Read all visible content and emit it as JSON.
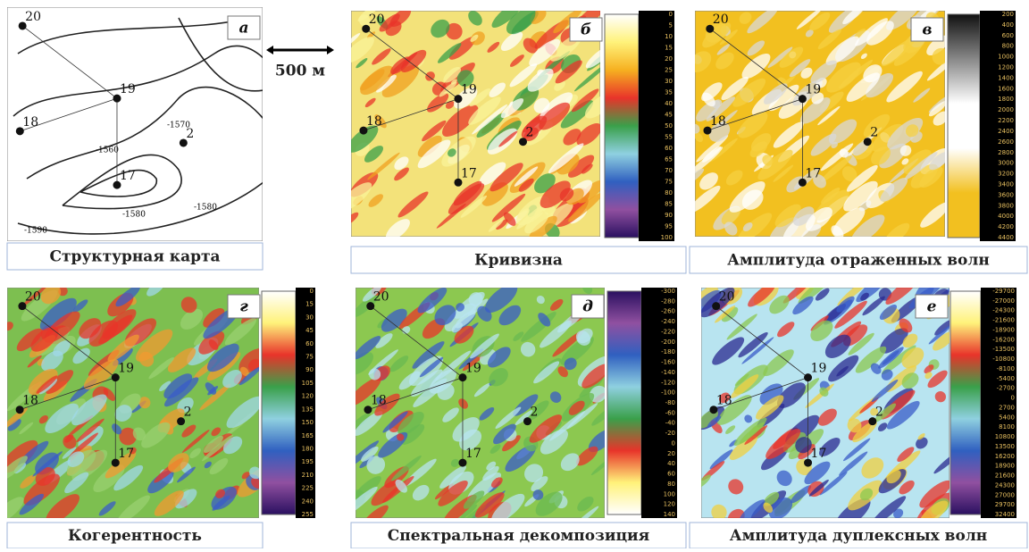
{
  "scale_bar": "500 м",
  "panels": [
    {
      "letter": "а",
      "caption": "Структурная карта",
      "wells": [
        "20",
        "19",
        "18",
        "17",
        "2"
      ],
      "contour_labels": [
        "-1590",
        "-1580",
        "-1560",
        "-1570",
        "-1580"
      ]
    },
    {
      "letter": "б",
      "caption": "Кривизна",
      "wells": [
        "20",
        "19",
        "18",
        "17",
        "2"
      ],
      "colorbar_ticks": [
        0,
        5,
        10,
        15,
        20,
        25,
        30,
        35,
        40,
        45,
        50,
        55,
        60,
        65,
        70,
        75,
        80,
        85,
        90,
        95,
        100
      ]
    },
    {
      "letter": "в",
      "caption": "Амплитуда отраженных волн",
      "wells": [
        "20",
        "19",
        "18",
        "17",
        "2"
      ],
      "colorbar_ticks": [
        200,
        400,
        600,
        800,
        1000,
        1200,
        1400,
        1600,
        1800,
        2000,
        2200,
        2400,
        2600,
        2800,
        3000,
        3200,
        3400,
        3600,
        3800,
        4000,
        4200,
        4400
      ]
    },
    {
      "letter": "г",
      "caption": "Когерентность",
      "wells": [
        "20",
        "19",
        "18",
        "17",
        "2"
      ],
      "colorbar_ticks": [
        0,
        15,
        30,
        45,
        60,
        75,
        90,
        105,
        120,
        135,
        150,
        165,
        180,
        195,
        210,
        225,
        240,
        255
      ]
    },
    {
      "letter": "д",
      "caption": "Спектральная декомпозиция",
      "wells": [
        "20",
        "19",
        "18",
        "17",
        "2"
      ],
      "colorbar_ticks": [
        -300,
        -280,
        -260,
        -240,
        -220,
        -200,
        -180,
        -160,
        -140,
        -120,
        -100,
        -80,
        -60,
        -40,
        -20,
        0,
        20,
        40,
        60,
        80,
        100,
        120,
        140
      ]
    },
    {
      "letter": "е",
      "caption": "Амплитуда дуплексных волн",
      "wells": [
        "20",
        "19",
        "18",
        "17",
        "2"
      ],
      "colorbar_ticks": [
        -29700,
        -27000,
        -24300,
        -21600,
        -18900,
        -16200,
        -13500,
        -10800,
        -8100,
        -5400,
        -2700,
        0,
        2700,
        5400,
        8100,
        10800,
        13500,
        16200,
        18900,
        21600,
        24300,
        27000,
        29700,
        32400
      ]
    }
  ]
}
